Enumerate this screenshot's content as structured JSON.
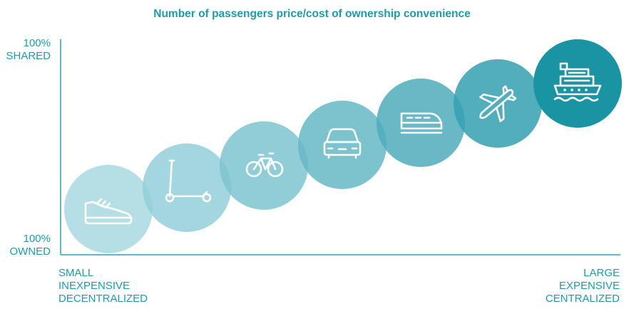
{
  "title": "Number of passengers price/cost of ownership convenience",
  "y_axis": {
    "top_label": [
      "100%",
      "SHARED"
    ],
    "bottom_label": [
      "100%",
      "OWNED"
    ]
  },
  "x_axis": {
    "left_label": [
      "SMALL",
      "INEXPENSIVE",
      "DECENTRALIZED"
    ],
    "right_label": [
      "LARGE",
      "EXPENSIVE",
      "CENTRALIZED"
    ]
  },
  "modes": [
    {
      "icon": "shoe-icon",
      "color": "#a9d9e0"
    },
    {
      "icon": "scooter-icon",
      "color": "#93cfd8"
    },
    {
      "icon": "bicycle-icon",
      "color": "#7cc4cf"
    },
    {
      "icon": "car-icon",
      "color": "#65b8c5"
    },
    {
      "icon": "train-icon",
      "color": "#4eacbb"
    },
    {
      "icon": "airplane-icon",
      "color": "#35a0b0"
    },
    {
      "icon": "ship-icon",
      "color": "#1a93a3"
    }
  ],
  "colors": {
    "text": "#1f9aab",
    "axis": "#2ba3b3"
  }
}
